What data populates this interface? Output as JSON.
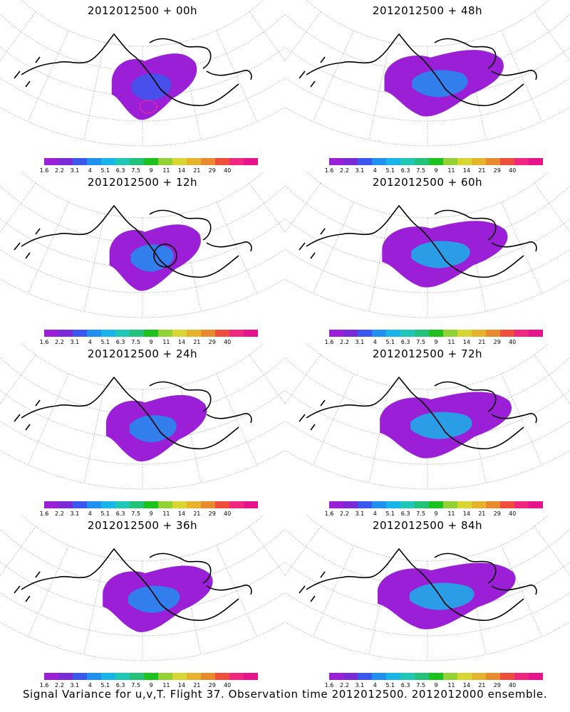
{
  "caption": "Signal Variance for u,v,T. Flight 37. Observation time 2012012500. 2012012000 ensemble.",
  "colorbar": {
    "labels": [
      "1.6",
      "2.2",
      "3.1",
      "4",
      "5.1",
      "6.3",
      "7.5",
      "9",
      "11",
      "14",
      "21",
      "29",
      "40"
    ],
    "colors": [
      "#9a1fd6",
      "#7a2ad6",
      "#3b58ee",
      "#1f8ff0",
      "#18b4ea",
      "#1ec8b4",
      "#22c27a",
      "#1ec21e",
      "#93d235",
      "#d9d633",
      "#e6b32c",
      "#ea8a2e",
      "#f04e3c",
      "#f0277e",
      "#e6148c"
    ]
  },
  "panels": [
    {
      "title": "2012012500 + 00h",
      "intensity": 0.15,
      "marker": "ring"
    },
    {
      "title": "2012012500 + 48h",
      "intensity": 0.7,
      "marker": "none"
    },
    {
      "title": "2012012500 + 12h",
      "intensity": 0.25,
      "marker": "circle"
    },
    {
      "title": "2012012500 + 60h",
      "intensity": 0.8,
      "marker": "none"
    },
    {
      "title": "2012012500 + 24h",
      "intensity": 0.4,
      "marker": "none"
    },
    {
      "title": "2012012500 + 72h",
      "intensity": 0.9,
      "marker": "none"
    },
    {
      "title": "2012012500 + 36h",
      "intensity": 0.55,
      "marker": "none"
    },
    {
      "title": "2012012500 + 84h",
      "intensity": 1.0,
      "marker": "none"
    }
  ]
}
